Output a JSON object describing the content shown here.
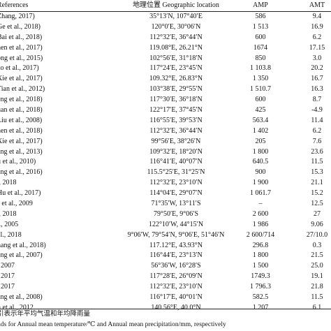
{
  "table": {
    "header": {
      "ref": "References",
      "geo": "地理位置 Geographic location",
      "amp": "AMP",
      "amt": "AMT"
    },
    "rows": [
      {
        "ref": "Zhang, 2017)",
        "geo": "35°13′N, 107°40′E",
        "amp": "586",
        "amt": "9.4"
      },
      {
        "ref": "Ge et al., 2018)",
        "geo": "120°0′E, 30°06′N",
        "amp": "1 513",
        "amt": "16.9"
      },
      {
        "ref": "Bai et al., 2018)",
        "geo": "112°32′E, 36°44′N",
        "amp": "600",
        "amt": "6.2"
      },
      {
        "ref": "hen et al., 2017)",
        "geo": "119.08°E, 26.21°N",
        "amp": "1674",
        "amt": "17.15"
      },
      {
        "ref": "ong et al., 2015)",
        "geo": "102°56′E, 31°18′N",
        "amp": "850",
        "amt": "3.0"
      },
      {
        "ref": "ao et al., 2017)",
        "geo": "117°24′E, 23°45′N",
        "amp": "1 103.8",
        "amt": "20.2"
      },
      {
        "ref": "Xie et al., 2017)",
        "geo": "109.32°E, 26.83°N",
        "amp": "1 350",
        "amt": "16.7"
      },
      {
        "ref": "Tian et al., 2012)",
        "geo": "103°38′E, 29°55′N",
        "amp": "1 510.7",
        "amt": "16.3"
      },
      {
        "ref": "eng et al., 2018)",
        "geo": "117°30′E, 36°18′N",
        "amp": "600",
        "amt": "8.7"
      },
      {
        "ref": "uan et al., 2018)",
        "geo": "122°17′E, 37°45′N",
        "amp": "425",
        "amt": "-4.9"
      },
      {
        "ref": "Liu et al., 2008)",
        "geo": "116°55′E, 39°53′N",
        "amp": "563.4",
        "amt": "11.4"
      },
      {
        "ref": "nen et al., 2018)",
        "geo": "112°32′E, 36°44′N",
        "amp": "1 402",
        "amt": "6.2"
      },
      {
        "ref": "Xie et al., 2017)",
        "geo": "99°56′E, 38°26′N",
        "amp": "205",
        "amt": "7.6"
      },
      {
        "ref": "ang et al., 2013)",
        "geo": "109°32′E, 18°20′N",
        "amp": "1 800",
        "amt": "23.6"
      },
      {
        "ref": "u et al., 2010)",
        "geo": "116°41′E, 40°07′N",
        "amp": "640.5",
        "amt": "11.5"
      },
      {
        "ref": "ang et al., 2016)",
        "geo": "115.5°25′E, 31°25′N",
        "amp": "900",
        "amt": "15.3"
      },
      {
        "ref": "., 2018",
        "geo": "112°32′E, 23°10′N",
        "amp": "1 900",
        "amt": "21.1"
      },
      {
        "ref": "Hu et al., 2017)",
        "geo": "114°04′E, 29°07′N",
        "amp": "1 061.7",
        "amt": "15.2"
      },
      {
        "ref": "s et al., 2009",
        "geo": "71°35′W, 13°11′S",
        "amp": "–",
        "amt": "12.5"
      },
      {
        "ref": "., 2018",
        "geo": "79°50′E, 9°06′S",
        "amp": "2 600",
        "amt": "27"
      },
      {
        "ref": "l., 2005",
        "geo": "122°10′W, 44°15′N",
        "amp": "1 986",
        "amt": "9.06"
      },
      {
        "ref": "al., 2018",
        "geo": "9°06′W, 79°54′N, 9°06′E, 51°46′N",
        "amp": "2 600/714",
        "amt": "27/10.0"
      },
      {
        "ref": "hang et al., 2018)",
        "geo": "117.12°E, 43.93°N",
        "amp": "296.8",
        "amt": "0.3"
      },
      {
        "ref": "eng et al., 2007)",
        "geo": "116°44′E, 23°13′N",
        "amp": "1 800",
        "amt": "21.5"
      },
      {
        "ref": ", 2007",
        "geo": "56°36′W, 16°28′S",
        "amp": "1 500",
        "amt": "25.0"
      },
      {
        "ref": ", 2017",
        "geo": "117°28′E, 26°09′N",
        "amp": "1749.3",
        "amt": "19.1"
      },
      {
        "ref": ", 2017",
        "geo": "112°32′E, 23°10′N",
        "amp": "1 796.3",
        "amt": "21.8"
      },
      {
        "ref": "ang et al., 2008)",
        "geo": "116°17′E, 40°01′N",
        "amp": "582.5",
        "amt": "11.5"
      },
      {
        "ref": "h et al., 2012",
        "geo": "140.56°E, 40.0°N",
        "amp": "1 207",
        "amt": "6.1"
      }
    ],
    "notes": [
      "引表示年平均气温和年均降雨量",
      "nds for Annual mean temperature/℃ and Annual mean precipitation/mm, respectively"
    ]
  }
}
